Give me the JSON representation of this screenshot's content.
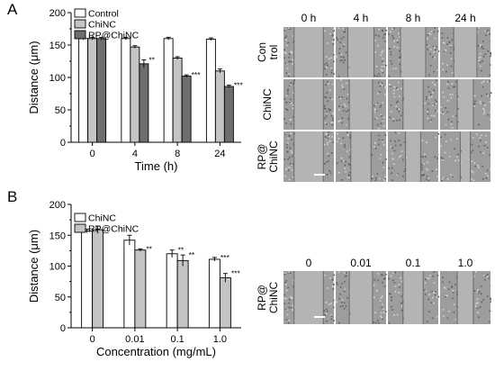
{
  "panels": {
    "a": "A",
    "b": "B"
  },
  "colors": {
    "white": "#ffffff",
    "light": "#c4c4c4",
    "dark": "#6e6e6e",
    "stroke": "#000000"
  },
  "chart_data": [
    {
      "type": "bar",
      "categories": [
        "0",
        "4",
        "8",
        "24"
      ],
      "series": [
        {
          "name": "Control",
          "values": [
            160,
            160,
            160,
            159
          ],
          "errors": [
            2,
            2,
            2,
            2
          ],
          "sig": [
            "",
            "",
            "",
            ""
          ]
        },
        {
          "name": "ChiNC",
          "values": [
            160,
            147,
            130,
            110
          ],
          "errors": [
            2,
            2,
            2,
            3
          ],
          "sig": [
            "",
            "",
            "",
            ""
          ]
        },
        {
          "name": "RP@ChiNC",
          "values": [
            160,
            121,
            102,
            86
          ],
          "errors": [
            2,
            6,
            2,
            2
          ],
          "sig": [
            "",
            "**",
            "***",
            "***"
          ]
        }
      ],
      "xlabel": "Time (h)",
      "ylabel": "Distance (μm)",
      "ylim": [
        0,
        200
      ],
      "yticks": [
        "0",
        "50",
        "100",
        "150",
        "200"
      ],
      "legend": "top-left"
    },
    {
      "type": "bar",
      "categories": [
        "0",
        "0.01",
        "0.1",
        "1.0"
      ],
      "series": [
        {
          "name": "ChiNC",
          "values": [
            157,
            142,
            120,
            111
          ],
          "errors": [
            3,
            8,
            6,
            3
          ],
          "sig": [
            "",
            "",
            "**",
            "***"
          ]
        },
        {
          "name": "RP@ChiNC",
          "values": [
            159,
            126,
            109,
            81
          ],
          "errors": [
            6,
            2,
            9,
            7
          ],
          "sig": [
            "",
            "**",
            "**",
            "***"
          ]
        }
      ],
      "xlabel": "Concentration (mg/mL)",
      "ylabel": "Distance (μm)",
      "ylim": [
        0,
        200
      ],
      "yticks": [
        "0",
        "50",
        "100",
        "150",
        "200"
      ],
      "legend": "top-left"
    }
  ],
  "micrographs_a": {
    "columns": [
      "0 h",
      "4 h",
      "8 h",
      "24 h"
    ],
    "rows": [
      "Control",
      "ChiNC",
      "RP@ChiNC"
    ],
    "gaps": [
      0.58,
      0.52,
      0.5,
      0.46,
      0.58,
      0.46,
      0.4,
      0.32,
      0.58,
      0.4,
      0.3,
      0.2
    ]
  },
  "micrographs_b": {
    "columns": [
      "0",
      "0.01",
      "0.1",
      "1.0"
    ],
    "rows": [
      "RP@ChiNC"
    ],
    "gaps": [
      0.58,
      0.46,
      0.4,
      0.32
    ]
  }
}
